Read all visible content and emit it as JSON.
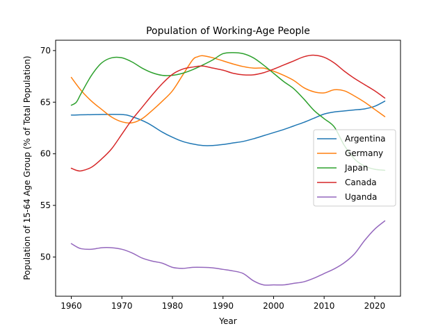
{
  "chart_data": {
    "type": "line",
    "title": "Population of Working-Age People",
    "xlabel": "Year",
    "ylabel": "Population of 15-64 Age Group (% of Total Population)",
    "xlim": [
      1956.9,
      2025.1
    ],
    "ylim": [
      46.2,
      71.0
    ],
    "xticks": [
      1960,
      1970,
      1980,
      1990,
      2000,
      2010,
      2020
    ],
    "yticks": [
      50,
      55,
      60,
      65,
      70
    ],
    "grid": false,
    "legend_position": "center-right",
    "series": [
      {
        "name": "Argentina",
        "color": "#1f77b4",
        "x": [
          1960,
          1965,
          1970,
          1972,
          1975,
          1978,
          1980,
          1982,
          1984,
          1986,
          1988,
          1990,
          1992,
          1994,
          1996,
          1998,
          2000,
          2002,
          2004,
          2006,
          2008,
          2010,
          2012,
          2014,
          2016,
          2018,
          2020,
          2022
        ],
        "y": [
          63.75,
          63.8,
          63.8,
          63.6,
          63.0,
          62.1,
          61.6,
          61.2,
          60.95,
          60.8,
          60.8,
          60.9,
          61.05,
          61.2,
          61.45,
          61.75,
          62.05,
          62.35,
          62.7,
          63.05,
          63.45,
          63.85,
          64.05,
          64.15,
          64.25,
          64.35,
          64.6,
          65.1
        ]
      },
      {
        "name": "Germany",
        "color": "#ff7f0e",
        "x": [
          1960,
          1962,
          1964,
          1966,
          1968,
          1970,
          1972,
          1974,
          1976,
          1978,
          1980,
          1982,
          1984,
          1985,
          1986,
          1988,
          1990,
          1992,
          1994,
          1996,
          1998,
          2000,
          2002,
          2004,
          2006,
          2008,
          2010,
          2012,
          2014,
          2016,
          2018,
          2020,
          2022
        ],
        "y": [
          67.4,
          66.1,
          65.1,
          64.3,
          63.55,
          63.1,
          63.0,
          63.4,
          64.2,
          65.1,
          66.1,
          67.6,
          69.1,
          69.4,
          69.5,
          69.3,
          69.0,
          68.7,
          68.45,
          68.3,
          68.3,
          68.0,
          67.6,
          67.1,
          66.4,
          66.0,
          65.9,
          66.2,
          66.1,
          65.6,
          65.0,
          64.3,
          63.6
        ]
      },
      {
        "name": "Japan",
        "color": "#2ca02c",
        "x": [
          1960,
          1961,
          1962,
          1964,
          1966,
          1968,
          1970,
          1972,
          1974,
          1976,
          1978,
          1980,
          1982,
          1984,
          1986,
          1988,
          1990,
          1992,
          1994,
          1996,
          1998,
          2000,
          2002,
          2004,
          2006,
          2008,
          2010,
          2012,
          2014,
          2016,
          2018,
          2020,
          2022
        ],
        "y": [
          64.7,
          65.0,
          65.9,
          67.6,
          68.8,
          69.3,
          69.3,
          68.9,
          68.3,
          67.85,
          67.6,
          67.6,
          67.8,
          68.15,
          68.6,
          69.1,
          69.7,
          69.8,
          69.7,
          69.3,
          68.6,
          67.8,
          67.0,
          66.3,
          65.3,
          64.2,
          63.4,
          62.6,
          60.8,
          59.5,
          58.8,
          58.5,
          58.4
        ]
      },
      {
        "name": "Canada",
        "color": "#d62728",
        "x": [
          1960,
          1961,
          1962,
          1964,
          1966,
          1968,
          1970,
          1972,
          1974,
          1976,
          1978,
          1980,
          1982,
          1984,
          1986,
          1988,
          1990,
          1992,
          1994,
          1996,
          1998,
          2000,
          2002,
          2004,
          2006,
          2008,
          2010,
          2012,
          2014,
          2016,
          2018,
          2020,
          2022
        ],
        "y": [
          58.6,
          58.4,
          58.35,
          58.7,
          59.5,
          60.5,
          61.9,
          63.3,
          64.5,
          65.7,
          66.8,
          67.7,
          68.2,
          68.4,
          68.5,
          68.3,
          68.1,
          67.8,
          67.65,
          67.65,
          67.85,
          68.2,
          68.6,
          69.0,
          69.4,
          69.55,
          69.35,
          68.8,
          68.0,
          67.3,
          66.7,
          66.1,
          65.4
        ]
      },
      {
        "name": "Uganda",
        "color": "#9467bd",
        "x": [
          1960,
          1961,
          1962,
          1964,
          1966,
          1968,
          1970,
          1972,
          1974,
          1976,
          1978,
          1980,
          1982,
          1984,
          1986,
          1988,
          1990,
          1992,
          1994,
          1996,
          1998,
          2000,
          2002,
          2004,
          2006,
          2008,
          2010,
          2012,
          2014,
          2016,
          2018,
          2020,
          2022
        ],
        "y": [
          51.3,
          51.0,
          50.8,
          50.75,
          50.9,
          50.9,
          50.75,
          50.4,
          49.9,
          49.6,
          49.4,
          49.0,
          48.9,
          49.0,
          49.0,
          48.95,
          48.8,
          48.65,
          48.4,
          47.7,
          47.3,
          47.3,
          47.3,
          47.45,
          47.6,
          47.95,
          48.4,
          48.85,
          49.45,
          50.3,
          51.6,
          52.7,
          53.5
        ]
      }
    ]
  }
}
